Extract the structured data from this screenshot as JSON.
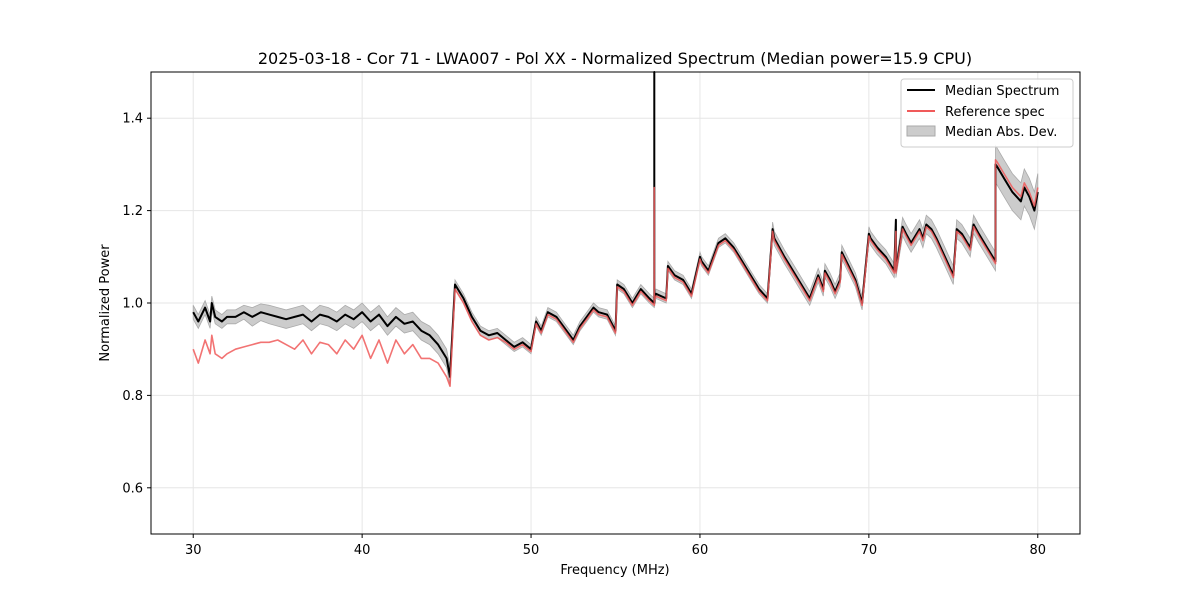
{
  "chart_data": {
    "type": "line",
    "title": "2025-03-18 - Cor 71 - LWA007 - Pol XX - Normalized Spectrum (Median power=15.9 CPU)",
    "xlabel": "Frequency (MHz)",
    "ylabel": "Normalized Power",
    "xlim": [
      27.5,
      82.5
    ],
    "ylim": [
      0.5,
      1.5
    ],
    "xticks": [
      30,
      40,
      50,
      60,
      70,
      80
    ],
    "yticks": [
      0.6,
      0.8,
      1.0,
      1.2,
      1.4
    ],
    "xtick_labels": [
      "30",
      "40",
      "50",
      "60",
      "70",
      "80"
    ],
    "ytick_labels": [
      "0.6",
      "0.8",
      "1.0",
      "1.2",
      "1.4"
    ],
    "grid": true,
    "legend_position": "top-right",
    "series": [
      {
        "name": "Median Spectrum",
        "color": "#000000",
        "x": [
          30.0,
          30.3,
          30.7,
          31.0,
          31.1,
          31.3,
          31.7,
          32.0,
          32.5,
          33.0,
          33.5,
          34.0,
          34.5,
          35.0,
          35.5,
          36.0,
          36.5,
          37.0,
          37.5,
          38.0,
          38.5,
          39.0,
          39.5,
          40.0,
          40.5,
          41.0,
          41.5,
          42.0,
          42.5,
          43.0,
          43.5,
          44.0,
          44.5,
          45.0,
          45.2,
          45.5,
          46.0,
          46.5,
          47.0,
          47.5,
          48.0,
          48.5,
          49.0,
          49.5,
          50.0,
          50.3,
          50.6,
          51.0,
          51.5,
          52.0,
          52.5,
          52.9,
          53.3,
          53.7,
          54.0,
          54.5,
          55.0,
          55.1,
          55.5,
          56.0,
          56.5,
          57.0,
          57.3,
          57.3,
          57.3,
          57.4,
          57.7,
          58.0,
          58.1,
          58.5,
          59.0,
          59.5,
          60.0,
          60.1,
          60.5,
          61.0,
          61.1,
          61.5,
          62.0,
          62.5,
          63.0,
          63.5,
          64.0,
          64.3,
          64.4,
          65.0,
          65.5,
          66.0,
          66.5,
          67.0,
          67.3,
          67.4,
          67.7,
          68.0,
          68.3,
          68.4,
          68.8,
          69.2,
          69.6,
          70.0,
          70.1,
          70.5,
          71.0,
          71.5,
          71.6,
          71.6,
          71.6,
          72.0,
          72.2,
          72.5,
          73.0,
          73.2,
          73.4,
          73.7,
          74.0,
          74.5,
          75.0,
          75.2,
          75.5,
          76.0,
          76.2,
          76.5,
          77.0,
          77.5,
          77.5,
          77.6,
          78.0,
          78.5,
          79.0,
          79.2,
          79.5,
          79.8,
          80.0
        ],
        "values": [
          0.98,
          0.96,
          0.99,
          0.96,
          1.0,
          0.97,
          0.96,
          0.97,
          0.97,
          0.98,
          0.97,
          0.98,
          0.975,
          0.97,
          0.965,
          0.97,
          0.975,
          0.96,
          0.975,
          0.97,
          0.96,
          0.975,
          0.965,
          0.98,
          0.96,
          0.975,
          0.95,
          0.97,
          0.955,
          0.96,
          0.94,
          0.93,
          0.91,
          0.88,
          0.84,
          1.04,
          1.01,
          0.97,
          0.94,
          0.93,
          0.935,
          0.92,
          0.905,
          0.915,
          0.9,
          0.96,
          0.94,
          0.98,
          0.97,
          0.945,
          0.92,
          0.95,
          0.97,
          0.99,
          0.98,
          0.975,
          0.94,
          1.04,
          1.03,
          1.0,
          1.03,
          1.01,
          1.0,
          1.5,
          1.01,
          1.02,
          1.015,
          1.01,
          1.08,
          1.06,
          1.05,
          1.02,
          1.1,
          1.09,
          1.07,
          1.12,
          1.13,
          1.14,
          1.12,
          1.09,
          1.06,
          1.03,
          1.01,
          1.16,
          1.14,
          1.1,
          1.07,
          1.04,
          1.01,
          1.06,
          1.03,
          1.07,
          1.05,
          1.025,
          1.05,
          1.11,
          1.08,
          1.05,
          1.0,
          1.15,
          1.14,
          1.12,
          1.1,
          1.07,
          1.18,
          1.12,
          1.07,
          1.165,
          1.15,
          1.13,
          1.16,
          1.14,
          1.17,
          1.16,
          1.14,
          1.1,
          1.06,
          1.16,
          1.15,
          1.12,
          1.17,
          1.15,
          1.12,
          1.09,
          1.3,
          1.295,
          1.27,
          1.24,
          1.22,
          1.25,
          1.23,
          1.2,
          1.24
        ]
      },
      {
        "name": "Reference spec",
        "color": "#f05a5a",
        "x": [
          30.0,
          30.3,
          30.7,
          31.0,
          31.1,
          31.3,
          31.7,
          32.0,
          32.5,
          33.0,
          33.5,
          34.0,
          34.5,
          35.0,
          35.5,
          36.0,
          36.5,
          37.0,
          37.5,
          38.0,
          38.5,
          39.0,
          39.5,
          40.0,
          40.5,
          41.0,
          41.5,
          42.0,
          42.5,
          43.0,
          43.5,
          44.0,
          44.5,
          45.0,
          45.2,
          45.5,
          46.0,
          46.5,
          47.0,
          47.5,
          48.0,
          48.5,
          49.0,
          49.5,
          50.0,
          50.3,
          50.6,
          51.0,
          51.5,
          52.0,
          52.5,
          52.9,
          53.3,
          53.7,
          54.0,
          54.5,
          55.0,
          55.1,
          55.5,
          56.0,
          56.5,
          57.0,
          57.3,
          57.3,
          57.3,
          57.4,
          57.7,
          58.0,
          58.1,
          58.5,
          59.0,
          59.5,
          60.0,
          60.1,
          60.5,
          61.0,
          61.1,
          61.5,
          62.0,
          62.5,
          63.0,
          63.5,
          64.0,
          64.3,
          64.4,
          65.0,
          65.5,
          66.0,
          66.5,
          67.0,
          67.3,
          67.4,
          67.7,
          68.0,
          68.3,
          68.4,
          68.8,
          69.2,
          69.6,
          70.0,
          70.1,
          70.5,
          71.0,
          71.5,
          71.6,
          71.6,
          71.6,
          72.0,
          72.2,
          72.5,
          73.0,
          73.2,
          73.4,
          73.7,
          74.0,
          74.5,
          75.0,
          75.2,
          75.5,
          76.0,
          76.2,
          76.5,
          77.0,
          77.5,
          77.5,
          77.6,
          78.0,
          78.5,
          79.0,
          79.2,
          79.5,
          79.8,
          80.0
        ],
        "values": [
          0.9,
          0.87,
          0.92,
          0.89,
          0.93,
          0.89,
          0.88,
          0.89,
          0.9,
          0.905,
          0.91,
          0.915,
          0.915,
          0.92,
          0.91,
          0.9,
          0.92,
          0.89,
          0.915,
          0.91,
          0.89,
          0.92,
          0.9,
          0.93,
          0.88,
          0.92,
          0.87,
          0.92,
          0.89,
          0.91,
          0.88,
          0.88,
          0.87,
          0.84,
          0.82,
          1.03,
          1.0,
          0.96,
          0.93,
          0.92,
          0.925,
          0.915,
          0.9,
          0.91,
          0.895,
          0.955,
          0.935,
          0.975,
          0.965,
          0.94,
          0.915,
          0.945,
          0.965,
          0.985,
          0.975,
          0.97,
          0.935,
          1.035,
          1.025,
          0.995,
          1.025,
          1.005,
          0.995,
          1.25,
          1.005,
          1.015,
          1.01,
          1.005,
          1.075,
          1.055,
          1.045,
          1.015,
          1.095,
          1.085,
          1.065,
          1.115,
          1.125,
          1.135,
          1.115,
          1.085,
          1.055,
          1.025,
          1.005,
          1.155,
          1.135,
          1.095,
          1.065,
          1.035,
          1.005,
          1.055,
          1.025,
          1.065,
          1.045,
          1.02,
          1.045,
          1.105,
          1.075,
          1.045,
          0.995,
          1.145,
          1.135,
          1.115,
          1.095,
          1.065,
          1.155,
          1.115,
          1.065,
          1.16,
          1.145,
          1.125,
          1.155,
          1.135,
          1.165,
          1.155,
          1.135,
          1.095,
          1.055,
          1.155,
          1.145,
          1.115,
          1.165,
          1.145,
          1.115,
          1.085,
          1.31,
          1.305,
          1.28,
          1.25,
          1.23,
          1.26,
          1.24,
          1.21,
          1.25
        ]
      }
    ],
    "band": {
      "name": "Median Abs. Dev.",
      "color": "#cccccc",
      "edge_color": "#aaaaaa",
      "x": [
        30.0,
        30.3,
        30.7,
        31.0,
        31.1,
        31.3,
        31.7,
        32.0,
        32.5,
        33.0,
        33.5,
        34.0,
        34.5,
        35.0,
        35.5,
        36.0,
        36.5,
        37.0,
        37.5,
        38.0,
        38.5,
        39.0,
        39.5,
        40.0,
        40.5,
        41.0,
        41.5,
        42.0,
        42.5,
        43.0,
        43.5,
        44.0,
        44.5,
        45.0,
        45.2,
        45.5,
        46.0,
        46.5,
        47.0,
        47.5,
        48.0,
        48.5,
        49.0,
        49.5,
        50.0,
        50.3,
        50.6,
        51.0,
        51.5,
        52.0,
        52.5,
        52.9,
        53.3,
        53.7,
        54.0,
        54.5,
        55.0,
        55.1,
        55.5,
        56.0,
        56.5,
        57.0,
        57.3,
        57.3,
        57.3,
        57.4,
        57.7,
        58.0,
        58.1,
        58.5,
        59.0,
        59.5,
        60.0,
        60.1,
        60.5,
        61.0,
        61.1,
        61.5,
        62.0,
        62.5,
        63.0,
        63.5,
        64.0,
        64.3,
        64.4,
        65.0,
        65.5,
        66.0,
        66.5,
        67.0,
        67.3,
        67.4,
        67.7,
        68.0,
        68.3,
        68.4,
        68.8,
        69.2,
        69.6,
        70.0,
        70.1,
        70.5,
        71.0,
        71.5,
        71.6,
        71.6,
        71.6,
        72.0,
        72.2,
        72.5,
        73.0,
        73.2,
        73.4,
        73.7,
        74.0,
        74.5,
        75.0,
        75.2,
        75.5,
        76.0,
        76.2,
        76.5,
        77.0,
        77.5,
        77.5,
        77.6,
        78.0,
        78.5,
        79.0,
        79.2,
        79.5,
        79.8,
        80.0
      ],
      "upper": [
        0.995,
        0.975,
        1.005,
        0.975,
        1.015,
        0.985,
        0.975,
        0.985,
        0.985,
        0.995,
        0.99,
        0.998,
        0.995,
        0.99,
        0.985,
        0.99,
        0.995,
        0.98,
        0.995,
        0.99,
        0.98,
        0.995,
        0.985,
        1.0,
        0.98,
        0.995,
        0.97,
        0.99,
        0.975,
        0.98,
        0.96,
        0.95,
        0.93,
        0.9,
        0.86,
        1.05,
        1.02,
        0.98,
        0.95,
        0.94,
        0.945,
        0.93,
        0.915,
        0.925,
        0.91,
        0.97,
        0.95,
        0.99,
        0.98,
        0.955,
        0.93,
        0.96,
        0.98,
        1.0,
        0.99,
        0.985,
        0.95,
        1.05,
        1.04,
        1.01,
        1.04,
        1.02,
        1.01,
        1.01,
        1.01,
        1.03,
        1.025,
        1.02,
        1.09,
        1.07,
        1.06,
        1.03,
        1.11,
        1.1,
        1.08,
        1.13,
        1.14,
        1.15,
        1.13,
        1.1,
        1.07,
        1.04,
        1.02,
        1.175,
        1.155,
        1.115,
        1.085,
        1.055,
        1.025,
        1.075,
        1.045,
        1.085,
        1.065,
        1.04,
        1.065,
        1.125,
        1.095,
        1.065,
        1.015,
        1.165,
        1.155,
        1.135,
        1.115,
        1.085,
        1.12,
        1.12,
        1.085,
        1.185,
        1.17,
        1.15,
        1.18,
        1.16,
        1.19,
        1.18,
        1.16,
        1.12,
        1.08,
        1.18,
        1.17,
        1.14,
        1.19,
        1.17,
        1.14,
        1.11,
        1.34,
        1.335,
        1.31,
        1.28,
        1.26,
        1.29,
        1.27,
        1.24,
        1.28
      ],
      "lower": [
        0.965,
        0.945,
        0.975,
        0.945,
        0.985,
        0.955,
        0.945,
        0.955,
        0.955,
        0.965,
        0.95,
        0.962,
        0.955,
        0.95,
        0.945,
        0.95,
        0.955,
        0.94,
        0.955,
        0.95,
        0.94,
        0.955,
        0.945,
        0.96,
        0.94,
        0.955,
        0.93,
        0.95,
        0.935,
        0.94,
        0.92,
        0.91,
        0.89,
        0.86,
        0.82,
        1.03,
        1.0,
        0.96,
        0.93,
        0.92,
        0.925,
        0.91,
        0.895,
        0.905,
        0.89,
        0.95,
        0.93,
        0.97,
        0.96,
        0.935,
        0.91,
        0.94,
        0.96,
        0.98,
        0.97,
        0.965,
        0.93,
        1.03,
        1.02,
        0.99,
        1.02,
        1.0,
        0.99,
        0.99,
        0.99,
        1.01,
        1.005,
        1.0,
        1.07,
        1.05,
        1.04,
        1.01,
        1.09,
        1.08,
        1.06,
        1.11,
        1.12,
        1.13,
        1.11,
        1.08,
        1.05,
        1.02,
        1.0,
        1.145,
        1.125,
        1.085,
        1.055,
        1.025,
        0.995,
        1.045,
        1.015,
        1.055,
        1.035,
        1.01,
        1.035,
        1.095,
        1.065,
        1.035,
        0.985,
        1.135,
        1.125,
        1.105,
        1.085,
        1.055,
        1.09,
        1.09,
        1.055,
        1.145,
        1.13,
        1.11,
        1.14,
        1.12,
        1.15,
        1.14,
        1.12,
        1.08,
        1.04,
        1.14,
        1.13,
        1.1,
        1.15,
        1.13,
        1.1,
        1.07,
        1.26,
        1.255,
        1.23,
        1.2,
        1.18,
        1.21,
        1.19,
        1.16,
        1.2
      ]
    },
    "legend": {
      "median_label": "Median Spectrum",
      "reference_label": "Reference spec",
      "mad_label": "Median Abs. Dev."
    }
  }
}
